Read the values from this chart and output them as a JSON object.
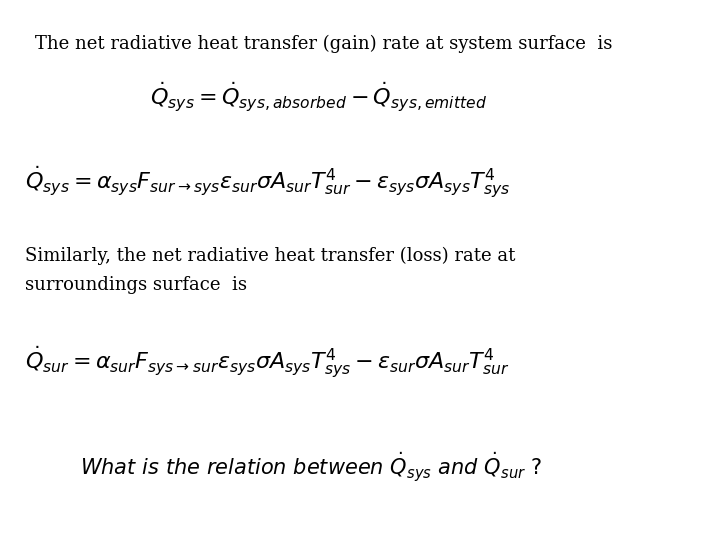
{
  "background_color": "#ffffff",
  "text1": "The net radiative heat transfer (gain) rate at system surface  is",
  "font_size_text": 13,
  "font_size_eq": 13,
  "font_size_italic": 13
}
